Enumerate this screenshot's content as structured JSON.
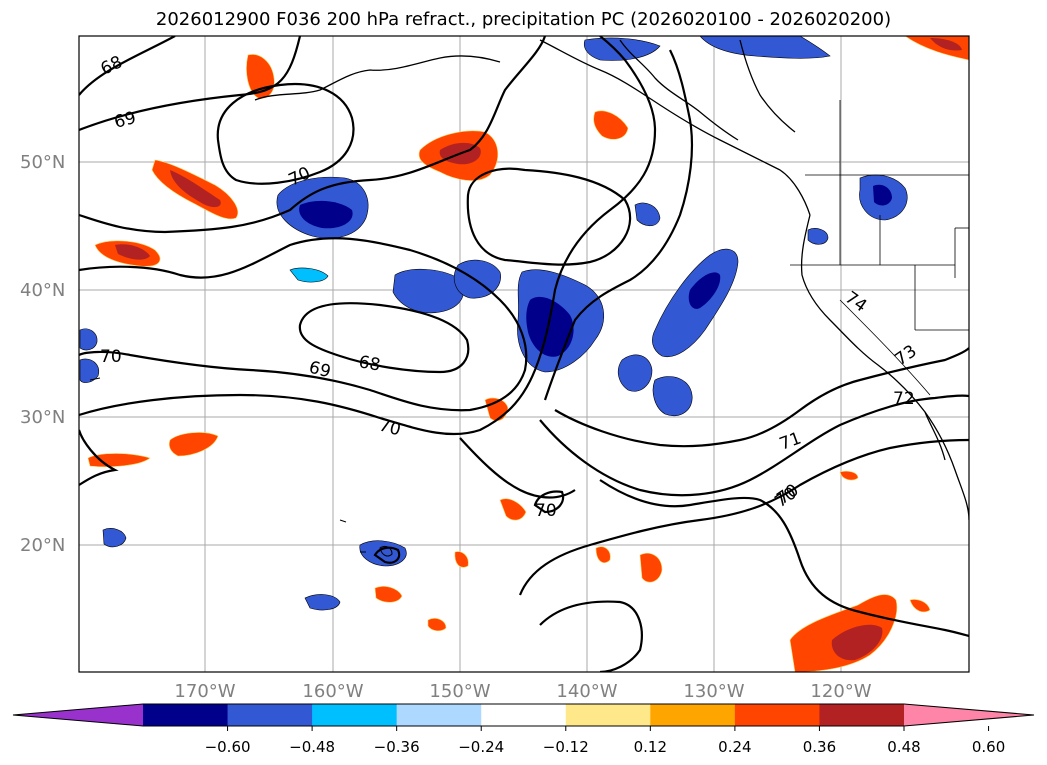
{
  "title": "2026012900 F036 200 hPa refract., precipitation PC (2026020100 - 2026020200)",
  "longitude_labels": [
    "170°W",
    "160°W",
    "150°W",
    "140°W",
    "130°W",
    "120°W"
  ],
  "latitude_labels": [
    "50°N",
    "40°N",
    "30°N",
    "20°N"
  ],
  "contour_labels": [
    "68",
    "69",
    "70",
    "70",
    "70",
    "69",
    "68",
    "70",
    "70",
    "71",
    "70",
    "72",
    "73",
    "74"
  ],
  "colorbar": {
    "tick_labels": [
      "−0.60",
      "−0.48",
      "−0.36",
      "−0.24",
      "−0.12",
      "0.12",
      "0.24",
      "0.36",
      "0.48",
      "0.60"
    ],
    "colors": [
      "#9932cc",
      "#00008b",
      "#3358d4",
      "#00bfff",
      "#add8ff",
      "#ffffff",
      "#ffe88a",
      "#ffa500",
      "#ff4500",
      "#b22222",
      "#ff85a8"
    ]
  },
  "colors": {
    "grid": "#a9a9a9",
    "contour": "#000000",
    "coast": "#000000"
  }
}
